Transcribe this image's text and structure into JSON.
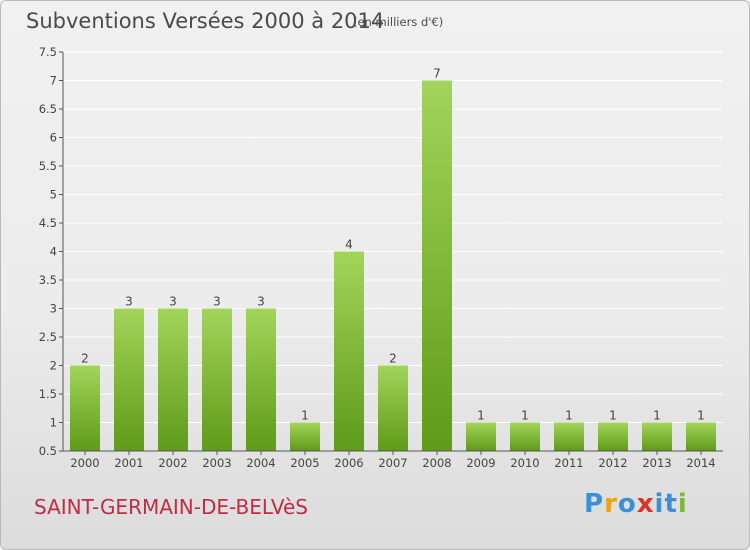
{
  "header": {
    "title": "Subventions Versées 2000 à 2014",
    "unit": "(en milliers d'€)"
  },
  "footer": {
    "commune": "SAINT-GERMAIN-DE-BELVèS",
    "logo_text": "Proxiti",
    "logo_colors": [
      "#3b8fd6",
      "#e8a31a",
      "#3b8fd6",
      "#d9342b",
      "#3b8fd6",
      "#3b8fd6",
      "#7cb83a"
    ]
  },
  "colors": {
    "bar_light": "#a2d55a",
    "bar_dark": "#5f9a18",
    "axis": "#555555",
    "grid": "#ffffff",
    "label": "#444444"
  },
  "chart_data": {
    "type": "bar",
    "categories": [
      "2000",
      "2001",
      "2002",
      "2003",
      "2004",
      "2005",
      "2006",
      "2007",
      "2008",
      "2009",
      "2010",
      "2011",
      "2012",
      "2013",
      "2014"
    ],
    "values": [
      2,
      3,
      3,
      3,
      3,
      1,
      4,
      2,
      7,
      1,
      1,
      1,
      1,
      1,
      1
    ],
    "data_labels": [
      "2",
      "3",
      "3",
      "3",
      "3",
      "1",
      "4",
      "2",
      "7",
      "1",
      "1",
      "1",
      "1",
      "1",
      "1"
    ],
    "y_ticks": [
      0.5,
      1,
      1.5,
      2,
      2.5,
      3,
      3.5,
      4,
      4.5,
      5,
      5.5,
      6,
      6.5,
      7,
      7.5
    ],
    "y_tick_labels": [
      "0.5",
      "1",
      "1.5",
      "2",
      "2.5",
      "3",
      "3.5",
      "4",
      "4.5",
      "5",
      "5.5",
      "6",
      "6.5",
      "7",
      "7.5"
    ],
    "ylim": [
      0.5,
      7.5
    ],
    "grid": true,
    "title": "Subventions Versées 2000 à 2014",
    "xlabel": "",
    "ylabel": ""
  }
}
